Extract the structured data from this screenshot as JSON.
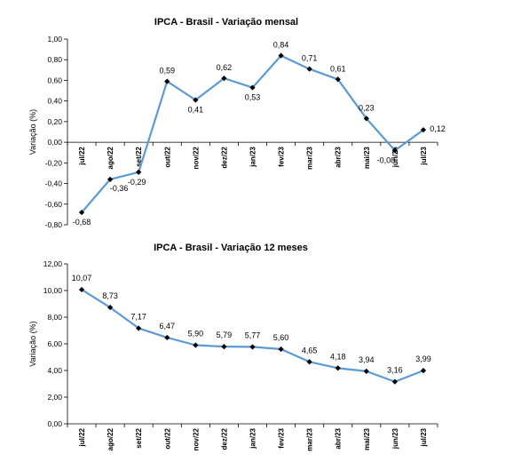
{
  "chart_data": [
    {
      "type": "line",
      "title": "IPCA - Brasil - Variação mensal",
      "ylabel": "Variação (%)",
      "categories": [
        "jul/22",
        "ago/22",
        "set/22",
        "out/22",
        "nov/22",
        "dez/22",
        "jan/23",
        "fev/23",
        "mar/23",
        "abr/23",
        "mai/23",
        "jun/23",
        "jul/23"
      ],
      "values": [
        -0.68,
        -0.36,
        -0.29,
        0.59,
        0.41,
        0.62,
        0.53,
        0.84,
        0.71,
        0.61,
        0.23,
        -0.08,
        0.12
      ],
      "value_labels": [
        "-0,68",
        "-0,36",
        "-0,29",
        "0,59",
        "0,41",
        "0,62",
        "0,53",
        "0,84",
        "0,71",
        "0,61",
        "0,23",
        "-0,08",
        "0,12"
      ],
      "ylim": [
        -0.8,
        1.0
      ],
      "yticks": [
        "1,00",
        "0,80",
        "0,60",
        "0,40",
        "0,20",
        "0,00",
        "-0,20",
        "-0,40",
        "-0,60",
        "-0,80"
      ],
      "line_color": "#5B9BD5"
    },
    {
      "type": "line",
      "title": "IPCA - Brasil - Variação 12 meses",
      "ylabel": "Variação (%)",
      "categories": [
        "jul/22",
        "ago/22",
        "set/22",
        "out/22",
        "nov/22",
        "dez/22",
        "jan/23",
        "fev/23",
        "mar/23",
        "abr/23",
        "mai/23",
        "jun/23",
        "jul/23"
      ],
      "values": [
        10.07,
        8.73,
        7.17,
        6.47,
        5.9,
        5.79,
        5.77,
        5.6,
        4.65,
        4.18,
        3.94,
        3.16,
        3.99
      ],
      "value_labels": [
        "10,07",
        "8,73",
        "7,17",
        "6,47",
        "5,90",
        "5,79",
        "5,77",
        "5,60",
        "4,65",
        "4,18",
        "3,94",
        "3,16",
        "3,99"
      ],
      "ylim": [
        0,
        12
      ],
      "yticks": [
        "12,00",
        "10,00",
        "8,00",
        "6,00",
        "4,00",
        "2,00",
        "0,00"
      ],
      "line_color": "#5B9BD5"
    }
  ]
}
